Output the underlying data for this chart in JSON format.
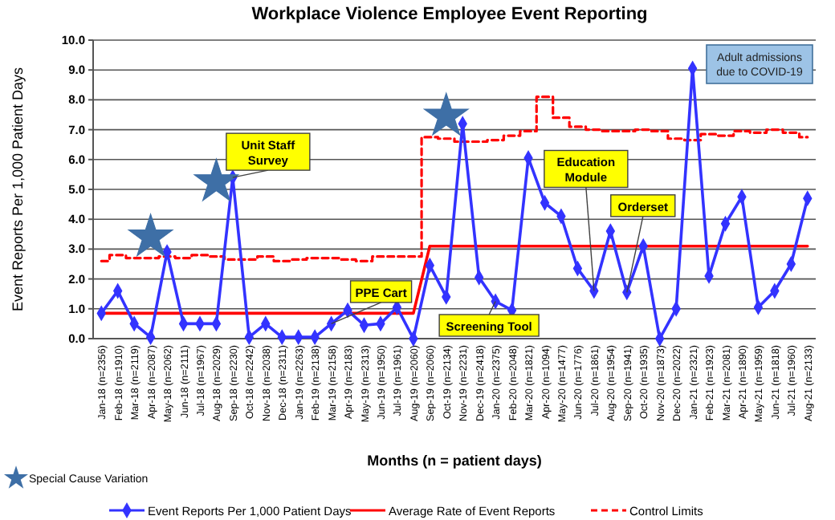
{
  "chart_data": {
    "type": "line",
    "title": "Workplace Violence Employee Event Reporting",
    "xlabel": "Months (n = patient days)",
    "ylabel": "Event Reports Per 1,000 Patient Days",
    "categories": [
      "Jan-18 (n=2356)",
      "Feb-18 (n=1910)",
      "Mar-18 (n=2119)",
      "Apr-18 (n=2087)",
      "May-18 (n=2062)",
      "Jun-18 (n=2111)",
      "Jul-18 (n=1967)",
      "Aug-18 (n=2029)",
      "Sep-18 (n=2230)",
      "Oct-18 (n=2242)",
      "Nov-18 (n=2038)",
      "Dec-18 (n=2311)",
      "Jan-19 (n=2263)",
      "Feb-19 (n=2138)",
      "Mar-19 (n=2158)",
      "Apr-19 (n=2183)",
      "May-19 (n=2313)",
      "Jun-19 (n=1950)",
      "Jul-19 (n=1961)",
      "Aug-19 (n=2060)",
      "Sep-19 (n=2060)",
      "Oct-19 (n=2134)",
      "Nov-19 (n=2231)",
      "Dec-19 (n=2418)",
      "Jan-20 (n=2375)",
      "Feb-20 (n=2048)",
      "Mar-20 (n=1821)",
      "Apr-20 (n=1094)",
      "May-20 (n=1477)",
      "Jun-20 (n=1776)",
      "Jul-20 (n=1861)",
      "Aug-20 (n=1954)",
      "Sep-20 (n=1941)",
      "Oct-20 (n=1935)",
      "Nov-20 (n=1873)",
      "Dec-20 (n=2022)",
      "Jan-21 (n=2321)",
      "Feb-21 (n=1923)",
      "Mar-21 (n=2081)",
      "Apr-21 (n=1890)",
      "May-21 (n=1959)",
      "Jun-21 (n=1818)",
      "Jul-21 (n=1960)",
      "Aug-21 (n=2133)"
    ],
    "series": [
      {
        "name": "Control Limits",
        "type": "step",
        "color": "#ff0000",
        "line_style": "dashed",
        "values": [
          2.6,
          2.8,
          2.7,
          2.7,
          2.75,
          2.7,
          2.8,
          2.75,
          2.65,
          2.65,
          2.75,
          2.6,
          2.65,
          2.7,
          2.7,
          2.65,
          2.6,
          2.75,
          2.75,
          2.75,
          6.75,
          6.7,
          6.6,
          6.6,
          6.65,
          6.8,
          6.95,
          8.1,
          7.4,
          7.1,
          7.0,
          6.95,
          6.95,
          7.0,
          6.95,
          6.7,
          6.65,
          6.85,
          6.8,
          6.95,
          6.9,
          7.0,
          6.9,
          6.75
        ]
      },
      {
        "name": "Average Rate of Event Reports",
        "type": "line",
        "color": "#ff0000",
        "values": [
          0.85,
          0.85,
          0.85,
          0.85,
          0.85,
          0.85,
          0.85,
          0.85,
          0.85,
          0.85,
          0.85,
          0.85,
          0.85,
          0.85,
          0.85,
          0.85,
          0.85,
          0.85,
          0.85,
          0.85,
          3.1,
          3.1,
          3.1,
          3.1,
          3.1,
          3.1,
          3.1,
          3.1,
          3.1,
          3.1,
          3.1,
          3.1,
          3.1,
          3.1,
          3.1,
          3.1,
          3.1,
          3.1,
          3.1,
          3.1,
          3.1,
          3.1,
          3.1,
          3.1
        ]
      },
      {
        "name": "Event Reports Per 1,000 Patient Days",
        "type": "line",
        "color": "#3333ff",
        "marker": "diamond",
        "values": [
          0.85,
          1.6,
          0.5,
          0.05,
          2.9,
          0.5,
          0.5,
          0.5,
          5.4,
          0.05,
          0.5,
          0.05,
          0.05,
          0.05,
          0.5,
          0.95,
          0.45,
          0.5,
          1.05,
          0.0,
          2.45,
          1.4,
          7.2,
          2.05,
          1.25,
          0.95,
          6.05,
          4.55,
          4.1,
          2.35,
          1.6,
          3.6,
          1.55,
          3.1,
          0.0,
          1.0,
          9.05,
          2.1,
          3.85,
          4.75,
          1.05,
          1.6,
          2.5,
          4.7
        ]
      },
      {
        "name": "Special Cause Variation",
        "type": "scatter",
        "color": "#3e6fa6",
        "marker": "star",
        "values": [
          null,
          null,
          null,
          3.4,
          null,
          null,
          null,
          5.25,
          null,
          null,
          null,
          null,
          null,
          null,
          null,
          null,
          null,
          null,
          null,
          null,
          null,
          7.45,
          null,
          null,
          null,
          null,
          null,
          null,
          null,
          null,
          null,
          null,
          null,
          null,
          null,
          null,
          null,
          null,
          null,
          null,
          null,
          null,
          null,
          null
        ]
      }
    ],
    "ylim": [
      0,
      10
    ],
    "yticks": [
      {
        "value": 0,
        "label": "0.0"
      },
      {
        "value": 1,
        "label": "1.0"
      },
      {
        "value": 2,
        "label": "2.0"
      },
      {
        "value": 3,
        "label": "3.0"
      },
      {
        "value": 4,
        "label": "4.0"
      },
      {
        "value": 5,
        "label": "5.0"
      },
      {
        "value": 6,
        "label": "6.0"
      },
      {
        "value": 7,
        "label": "7.0"
      },
      {
        "value": 8,
        "label": "8.0"
      },
      {
        "value": 9,
        "label": "9.0"
      },
      {
        "value": 10,
        "label": "10.0"
      }
    ],
    "grid": "y",
    "legend": "bottom",
    "annotations": [
      {
        "text": "Unit Staff Survey",
        "x": "Sep-18 (n=2230)",
        "y": 5.4
      },
      {
        "text": "PPE Cart",
        "x": "Mar-19 (n=2158)",
        "y": 0.5
      },
      {
        "text": "Screening Tool",
        "x": "Jan-20 (n=2375)",
        "y": 1.25
      },
      {
        "text": "Education Module",
        "x": "Jul-20 (n=1861)",
        "y": 1.6
      },
      {
        "text": "Orderset",
        "x": "Sep-20 (n=1941)",
        "y": 1.55
      },
      "Adult admissions due to COVID-19"
    ]
  }
}
